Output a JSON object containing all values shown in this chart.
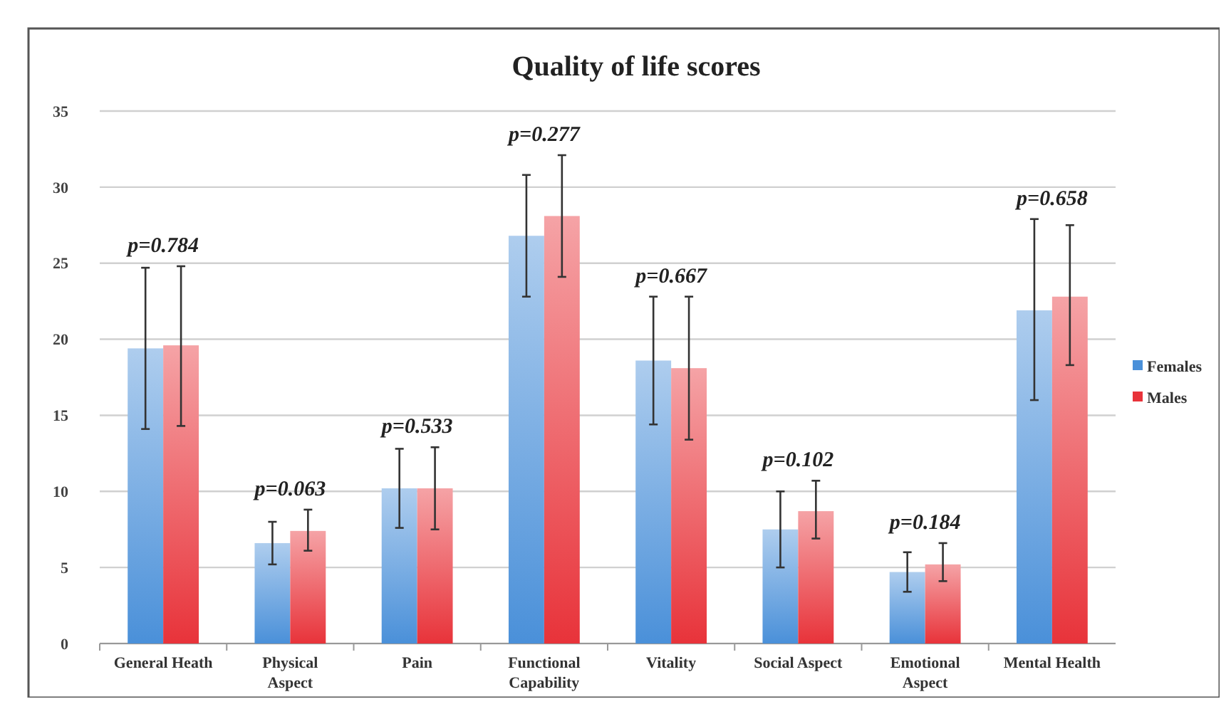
{
  "chart_data": {
    "type": "bar",
    "title": "Quality of life scores",
    "categories": [
      "General Heath",
      "Physical Aspect",
      "Pain",
      "Functional Capability",
      "Vitality",
      "Social Aspect",
      "Emotional Aspect",
      "Mental Health"
    ],
    "series": [
      {
        "name": "Females",
        "color": "#4a90d9",
        "values": [
          19.4,
          6.6,
          10.2,
          26.8,
          18.6,
          7.5,
          4.7,
          21.9
        ],
        "errors": [
          [
            14.1,
            24.7
          ],
          [
            5.2,
            8.0
          ],
          [
            7.6,
            12.8
          ],
          [
            22.8,
            30.8
          ],
          [
            14.4,
            22.8
          ],
          [
            5.0,
            10.0
          ],
          [
            3.4,
            6.0
          ],
          [
            16.0,
            27.9
          ]
        ]
      },
      {
        "name": "Males",
        "color": "#e8333a",
        "values": [
          19.6,
          7.4,
          10.2,
          28.1,
          18.1,
          8.7,
          5.2,
          22.8
        ],
        "errors": [
          [
            14.3,
            24.8
          ],
          [
            6.1,
            8.8
          ],
          [
            7.5,
            12.9
          ],
          [
            24.1,
            32.1
          ],
          [
            13.4,
            22.8
          ],
          [
            6.9,
            10.7
          ],
          [
            4.1,
            6.6
          ],
          [
            18.3,
            27.5
          ]
        ]
      }
    ],
    "annotations": [
      "p=0.784",
      "p=0.063",
      "p=0.533",
      "p=0.277",
      "p=0.667",
      "p=0.102",
      "p=0.184",
      "p=0.658"
    ],
    "ylim": [
      0,
      35
    ],
    "yticks": [
      0,
      5,
      10,
      15,
      20,
      25,
      30,
      35
    ],
    "grid": "y",
    "legend": "right"
  }
}
